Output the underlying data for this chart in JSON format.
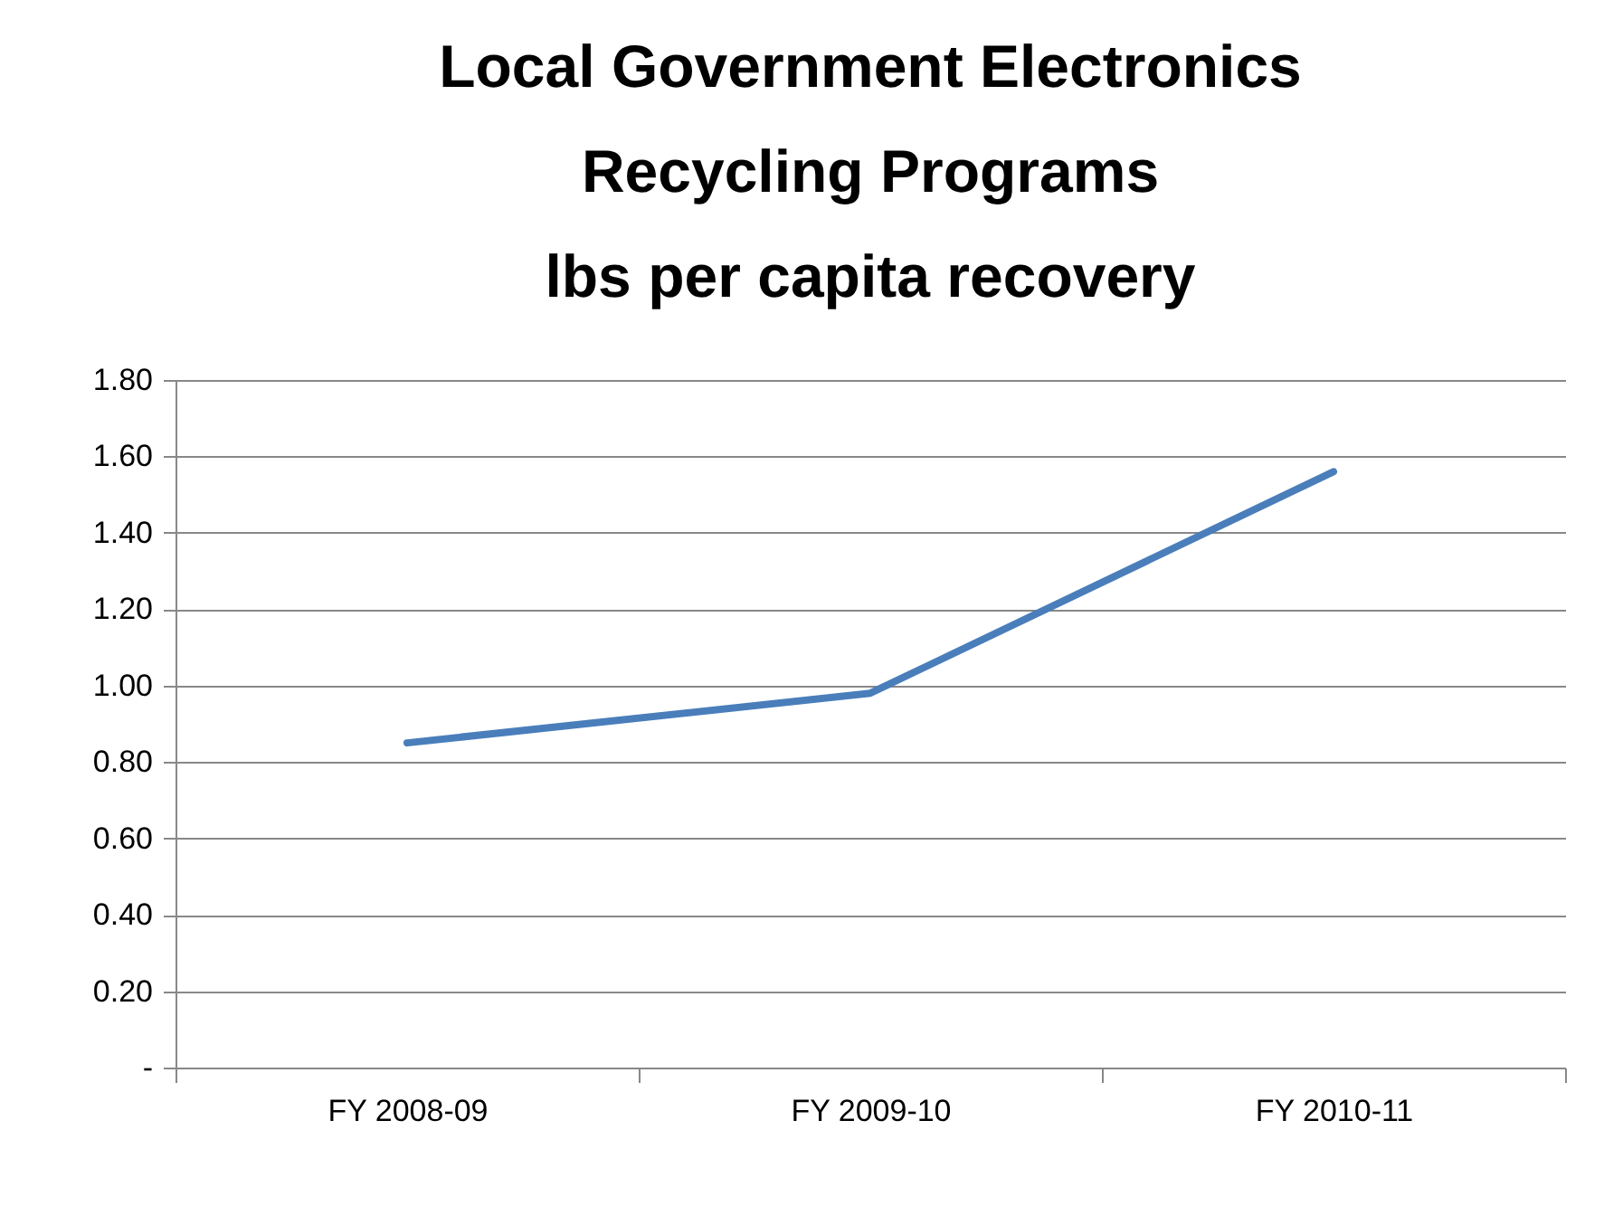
{
  "chart_data": {
    "type": "line",
    "title": "Local Government Electronics\nRecycling Programs\nlbs per capita recovery",
    "categories": [
      "FY 2008-09",
      "FY 2009-10",
      "FY 2010-11"
    ],
    "series": [
      {
        "color": "#4a7ebb",
        "values": [
          0.85,
          0.98,
          1.56
        ]
      }
    ],
    "ylim": [
      0,
      1.8
    ],
    "yticks": [
      {
        "value": 0,
        "label": "-"
      },
      {
        "value": 0.2,
        "label": "0.20"
      },
      {
        "value": 0.4,
        "label": "0.40"
      },
      {
        "value": 0.6,
        "label": "0.60"
      },
      {
        "value": 0.8,
        "label": "0.80"
      },
      {
        "value": 1,
        "label": "1.00"
      },
      {
        "value": 1.2,
        "label": "1.20"
      },
      {
        "value": 1.4,
        "label": "1.40"
      },
      {
        "value": 1.6,
        "label": "1.60"
      },
      {
        "value": 1.8,
        "label": "1.80"
      }
    ],
    "grid": "y",
    "legend": false,
    "marker": "none",
    "line_style": "solid"
  }
}
